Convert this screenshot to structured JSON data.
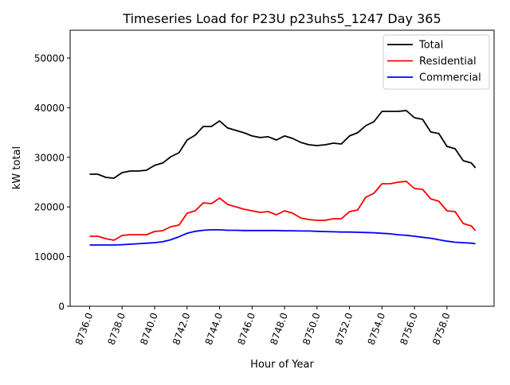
{
  "chart_data": {
    "type": "line",
    "title": "Timeseries Load for P23U p23uhs5_1247  Day 365",
    "xlabel": "Hour of Year",
    "ylabel": "kW total",
    "xlim": [
      8734.8,
      8760.9
    ],
    "ylim": [
      0,
      55600
    ],
    "grid": false,
    "legend_position": "top-right",
    "xticks": [
      8736,
      8738,
      8740,
      8742,
      8744,
      8746,
      8748,
      8750,
      8752,
      8754,
      8756,
      8758
    ],
    "xtick_labels": [
      "8736.0",
      "8738.0",
      "8740.0",
      "8742.0",
      "8744.0",
      "8746.0",
      "8748.0",
      "8750.0",
      "8752.0",
      "8754.0",
      "8756.0",
      "8758.0"
    ],
    "yticks": [
      0,
      10000,
      20000,
      30000,
      40000,
      50000
    ],
    "ytick_labels": [
      "0",
      "10000",
      "20000",
      "30000",
      "40000",
      "50000"
    ],
    "x": [
      8736,
      8736.5,
      8737,
      8737.5,
      8738,
      8738.5,
      8739,
      8739.5,
      8740,
      8740.5,
      8741,
      8741.5,
      8742,
      8742.5,
      8743,
      8743.5,
      8744,
      8744.5,
      8745,
      8745.5,
      8746,
      8746.5,
      8747,
      8747.5,
      8748,
      8748.5,
      8749,
      8749.5,
      8750,
      8750.5,
      8751,
      8751.5,
      8752,
      8752.5,
      8753,
      8753.5,
      8754,
      8754.5,
      8755,
      8755.5,
      8756,
      8756.5,
      8757,
      8757.5,
      8758,
      8758.5,
      8759,
      8759.5,
      8759.75
    ],
    "series": [
      {
        "name": "Total",
        "color": "#000000",
        "values": [
          26600,
          26600,
          25960,
          25800,
          26920,
          27240,
          27240,
          27400,
          28370,
          28850,
          30130,
          30930,
          33490,
          34460,
          36220,
          36220,
          37340,
          35900,
          35420,
          34940,
          34300,
          33980,
          34140,
          33490,
          34300,
          33810,
          33010,
          32530,
          32370,
          32530,
          32850,
          32690,
          34300,
          34940,
          36380,
          37180,
          39260,
          39260,
          39260,
          39420,
          37980,
          37660,
          35100,
          34780,
          32210,
          31730,
          29330,
          28850,
          27880
        ]
      },
      {
        "name": "Residential",
        "color": "#ff0000",
        "values": [
          14100,
          14100,
          13620,
          13300,
          14260,
          14420,
          14420,
          14420,
          15060,
          15220,
          16030,
          16350,
          18750,
          19230,
          20830,
          20670,
          21790,
          20510,
          20030,
          19550,
          19230,
          18910,
          19070,
          18430,
          19230,
          18750,
          17790,
          17470,
          17310,
          17310,
          17630,
          17630,
          19070,
          19390,
          21960,
          22760,
          24680,
          24680,
          25000,
          25160,
          23720,
          23560,
          21630,
          21150,
          19230,
          19070,
          16670,
          16190,
          15220
        ]
      },
      {
        "name": "Commercial",
        "color": "#0000ff",
        "values": [
          12340,
          12340,
          12340,
          12340,
          12400,
          12500,
          12600,
          12700,
          12800,
          13000,
          13400,
          14000,
          14700,
          15100,
          15300,
          15400,
          15400,
          15300,
          15300,
          15250,
          15250,
          15250,
          15250,
          15250,
          15200,
          15200,
          15150,
          15150,
          15100,
          15050,
          15000,
          14950,
          14950,
          14900,
          14850,
          14800,
          14700,
          14600,
          14400,
          14300,
          14100,
          13900,
          13700,
          13400,
          13100,
          12900,
          12800,
          12700,
          12600
        ]
      }
    ]
  }
}
